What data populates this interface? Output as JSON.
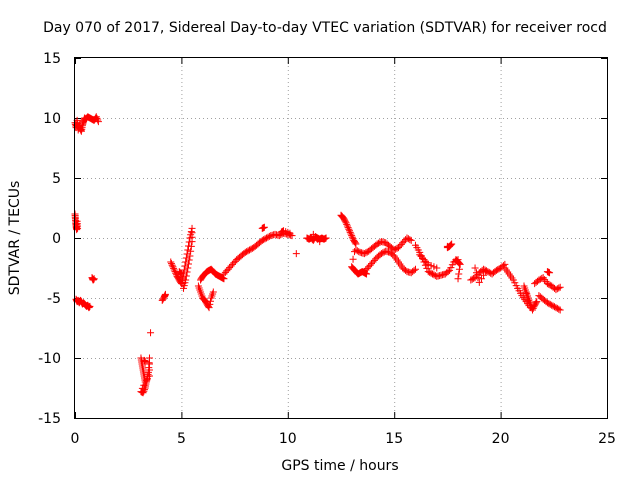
{
  "chart_data": {
    "type": "scatter",
    "title": "Day 070 of 2017, Sidereal Day-to-day VTEC variation (SDTVAR) for receiver rocd",
    "xlabel": "GPS time / hours",
    "ylabel": "SDTVAR / TECUs",
    "xlim": [
      0,
      25
    ],
    "ylim": [
      -15,
      15
    ],
    "xticks": [
      0,
      5,
      10,
      15,
      20,
      25
    ],
    "yticks": [
      -15,
      -10,
      -5,
      0,
      5,
      10,
      15
    ],
    "grid": true,
    "marker": "plus",
    "color": "#ff0000",
    "segments": [
      {
        "name": "early-high",
        "x": [
          0.0,
          0.05,
          0.1,
          0.15,
          0.2,
          0.25,
          0.3,
          0.35,
          0.4,
          0.45,
          0.5,
          0.6,
          0.7,
          0.8,
          0.9,
          1.0,
          1.1
        ],
        "y": [
          9.6,
          9.2,
          9.8,
          9.0,
          9.5,
          9.1,
          8.9,
          9.4,
          9.7,
          10.0,
          9.9,
          10.1,
          10.0,
          9.9,
          9.8,
          10.1,
          9.7
        ]
      },
      {
        "name": "early-zero",
        "x": [
          0.0,
          0.02,
          0.04,
          0.06,
          0.08,
          0.1,
          0.12
        ],
        "y": [
          2.0,
          1.6,
          1.2,
          0.9,
          0.7,
          1.4,
          0.8
        ]
      },
      {
        "name": "early-low",
        "x": [
          0.05,
          0.1,
          0.15,
          0.2,
          0.25,
          0.3,
          0.35,
          0.4,
          0.45,
          0.5,
          0.55,
          0.6,
          0.65,
          0.7
        ],
        "y": [
          -5.1,
          -5.3,
          -5.2,
          -5.4,
          -5.2,
          -5.3,
          -5.5,
          -5.4,
          -5.5,
          -5.6,
          -5.7,
          -5.6,
          -5.8,
          -5.7
        ]
      },
      {
        "name": "early-mid",
        "x": [
          0.8,
          0.85,
          0.9
        ],
        "y": [
          -3.3,
          -3.5,
          -3.4
        ]
      },
      {
        "name": "three-hour-cluster",
        "x": [
          3.1,
          3.15,
          3.2,
          3.25,
          3.3,
          3.1,
          3.2,
          3.3,
          3.35,
          3.4,
          3.45,
          3.5,
          3.5,
          3.55,
          3.25,
          3.3
        ],
        "y": [
          -10.0,
          -10.5,
          -11.0,
          -11.5,
          -12.0,
          -12.8,
          -12.9,
          -12.5,
          -12.0,
          -11.7,
          -11.2,
          -10.0,
          -11.5,
          -7.9,
          -10.2,
          -10.3
        ]
      },
      {
        "name": "four-hour",
        "x": [
          4.1,
          4.2,
          4.25
        ],
        "y": [
          -5.2,
          -4.9,
          -4.7
        ]
      },
      {
        "name": "five-hour-rise",
        "x": [
          4.5,
          4.6,
          4.7,
          4.8,
          4.9,
          5.0,
          5.1,
          5.2,
          5.3,
          5.4,
          5.5,
          5.5,
          5.4,
          5.3,
          5.2,
          5.1,
          5.0,
          4.9
        ],
        "y": [
          -2.0,
          -2.4,
          -2.8,
          -3.2,
          -3.5,
          -3.8,
          -3.0,
          -2.0,
          -1.0,
          0.0,
          0.8,
          -0.3,
          -1.5,
          -2.5,
          -3.5,
          -4.2,
          -3.0,
          -2.8
        ]
      },
      {
        "name": "six-hour-dip",
        "x": [
          5.8,
          5.9,
          6.0,
          6.1,
          6.2,
          6.3,
          6.4,
          6.5,
          5.9,
          6.0,
          6.1,
          6.2,
          6.3,
          6.4,
          6.5,
          6.6,
          6.7,
          6.8,
          6.9,
          7.0
        ],
        "y": [
          -4.0,
          -4.5,
          -5.0,
          -5.2,
          -5.5,
          -5.8,
          -5.0,
          -4.5,
          -3.5,
          -3.2,
          -3.0,
          -2.8,
          -2.7,
          -2.6,
          -2.8,
          -3.0,
          -3.1,
          -3.2,
          -3.3,
          -3.4
        ]
      },
      {
        "name": "recovery",
        "x": [
          7.0,
          7.2,
          7.4,
          7.6,
          7.8,
          8.0,
          8.2,
          8.4,
          8.6,
          8.8,
          9.0,
          9.2,
          9.4,
          9.6,
          9.8,
          10.0,
          10.2
        ],
        "y": [
          -3.0,
          -2.6,
          -2.2,
          -1.8,
          -1.5,
          -1.2,
          -1.0,
          -0.8,
          -0.5,
          -0.2,
          0.0,
          0.2,
          0.3,
          0.2,
          0.4,
          0.3,
          0.2
        ]
      },
      {
        "name": "nine-hour-peaks",
        "x": [
          8.8,
          8.9,
          9.7,
          9.8,
          10.1
        ],
        "y": [
          0.8,
          0.9,
          0.5,
          0.6,
          0.4
        ]
      },
      {
        "name": "ten-hour-isolated",
        "x": [
          10.4
        ],
        "y": [
          -1.3
        ]
      },
      {
        "name": "eleven-hour",
        "x": [
          10.9,
          11.0,
          11.1,
          11.2,
          11.3,
          11.4,
          11.5,
          11.6,
          11.7,
          11.8,
          11.2,
          11.5
        ],
        "y": [
          0.0,
          -0.1,
          0.0,
          -0.2,
          0.1,
          0.0,
          -0.1,
          0.0,
          -0.1,
          0.0,
          0.3,
          -0.3
        ]
      },
      {
        "name": "thirteen-hour-drop",
        "x": [
          12.5,
          12.6,
          12.7,
          12.8,
          12.9,
          13.0,
          13.1,
          13.2,
          13.0,
          13.1,
          13.2,
          13.3,
          13.4,
          13.5,
          13.6,
          13.7
        ],
        "y": [
          1.9,
          1.7,
          1.4,
          1.0,
          0.6,
          0.2,
          -0.2,
          -0.5,
          -2.4,
          -2.6,
          -2.8,
          -3.0,
          -2.9,
          -2.8,
          -2.9,
          -3.0
        ]
      },
      {
        "name": "fourteen-hour-upper",
        "x": [
          13.2,
          13.4,
          13.6,
          13.8,
          14.0,
          14.2,
          14.4,
          14.6,
          14.8,
          15.0,
          15.2,
          15.4,
          15.6,
          15.8
        ],
        "y": [
          -1.0,
          -1.2,
          -1.3,
          -1.1,
          -0.8,
          -0.5,
          -0.3,
          -0.4,
          -0.7,
          -1.0,
          -0.8,
          -0.4,
          0.0,
          -0.2
        ]
      },
      {
        "name": "fourteen-hour-lower",
        "x": [
          13.6,
          13.8,
          14.0,
          14.2,
          14.4,
          14.6,
          14.8,
          15.0,
          15.2,
          15.4,
          15.6,
          15.8,
          16.0
        ],
        "y": [
          -2.8,
          -2.4,
          -2.0,
          -1.6,
          -1.3,
          -1.1,
          -1.2,
          -1.5,
          -2.0,
          -2.5,
          -2.8,
          -2.9,
          -2.6
        ]
      },
      {
        "name": "sixteen-hour",
        "x": [
          16.0,
          16.2,
          16.4,
          16.6,
          16.8,
          17.0,
          17.2,
          17.4,
          17.6,
          17.8,
          18.0,
          16.2,
          16.4,
          16.6,
          17.0,
          17.5
        ],
        "y": [
          -0.6,
          -1.2,
          -2.0,
          -2.8,
          -3.0,
          -3.2,
          -3.1,
          -3.0,
          -2.7,
          -2.0,
          -1.8,
          -1.4,
          -1.8,
          -2.2,
          -2.5,
          -0.7
        ]
      },
      {
        "name": "seventeen-hour-peak",
        "x": [
          17.5,
          17.6,
          17.7
        ],
        "y": [
          -0.8,
          -0.7,
          -0.5
        ]
      },
      {
        "name": "eighteen-hour",
        "x": [
          17.9,
          18.0,
          18.1,
          18.0
        ],
        "y": [
          -1.8,
          -2.0,
          -2.2,
          -3.4
        ]
      },
      {
        "name": "nineteen-hour",
        "x": [
          18.6,
          18.8,
          19.0,
          19.2,
          19.4,
          19.6,
          19.8,
          20.0,
          20.2,
          18.8,
          19.0,
          19.3
        ],
        "y": [
          -3.5,
          -3.3,
          -2.9,
          -2.6,
          -2.8,
          -3.0,
          -2.7,
          -2.5,
          -2.2,
          -2.5,
          -3.7,
          -2.8
        ]
      },
      {
        "name": "twenty-one-decline",
        "x": [
          20.2,
          20.4,
          20.6,
          20.8,
          21.0,
          21.2,
          21.4,
          21.1,
          21.2,
          21.3,
          21.4,
          21.5,
          21.6,
          21.7
        ],
        "y": [
          -2.5,
          -3.0,
          -3.5,
          -4.2,
          -4.8,
          -5.3,
          -5.8,
          -4.0,
          -4.5,
          -5.0,
          -5.5,
          -6.0,
          -5.6,
          -5.3
        ]
      },
      {
        "name": "twenty-two-hour",
        "x": [
          21.6,
          21.8,
          22.0,
          22.2,
          22.4,
          22.6,
          22.8,
          21.8,
          22.0,
          22.2,
          22.4,
          22.6,
          22.8,
          22.2,
          22.3
        ],
        "y": [
          -3.8,
          -3.5,
          -3.3,
          -3.8,
          -4.0,
          -4.3,
          -4.1,
          -4.8,
          -5.1,
          -5.4,
          -5.6,
          -5.8,
          -6.0,
          -2.8,
          -2.9
        ]
      }
    ]
  }
}
